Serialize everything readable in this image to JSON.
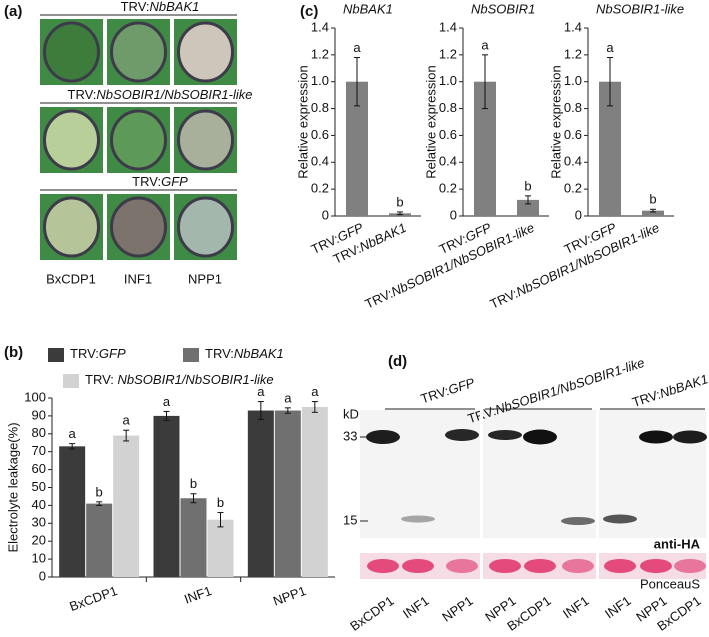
{
  "panel_labels": {
    "a": "(a)",
    "b": "(b)",
    "c": "(c)",
    "d": "(d)"
  },
  "panel_a": {
    "groups": [
      "TRV:NbBAK1",
      "TRV:NbSOBIR1/NbSOBIR1-like",
      "TRV:GFP"
    ],
    "columns": [
      "BxCDP1",
      "INF1",
      "NPP1"
    ]
  },
  "panel_d": {
    "groups": [
      "TRV:GFP",
      "TRV:NbSOBIR1/NbSOBIR1-like",
      "TRV:NbBAK1"
    ],
    "unit": "kD",
    "markers": [
      "33",
      "15"
    ],
    "antibody": "anti-HA",
    "stain": "PonceauS",
    "lanes": [
      "BxCDP1",
      "INF1",
      "NPP1",
      "NPP1",
      "BxCDP1",
      "INF1",
      "INF1",
      "NPP1",
      "BxCDP1"
    ]
  },
  "chart_data": [
    {
      "type": "bar",
      "title": "NbBAK1",
      "ylabel": "Relative expression",
      "categories": [
        "TRV:GFP",
        "TRV:NbBAK1"
      ],
      "values": [
        1.0,
        0.02
      ],
      "errors": [
        0.18,
        0.01
      ],
      "annotations": [
        "a",
        "b"
      ],
      "color": "#808080",
      "ylim": [
        0,
        1.4
      ],
      "yticks": [
        0,
        0.2,
        0.4,
        0.6,
        0.8,
        {
          "value": 1,
          "label": "1.0"
        },
        1.2,
        1.4
      ]
    },
    {
      "type": "bar",
      "title": "NbSOBIR1",
      "ylabel": "Relative expression",
      "categories": [
        "TRV:GFP",
        "TRV:NbSOBIR1/NbSOBIR1-like"
      ],
      "values": [
        1.0,
        0.12
      ],
      "errors": [
        0.2,
        0.03
      ],
      "annotations": [
        "a",
        "b"
      ],
      "color": "#808080",
      "ylim": [
        0,
        1.4
      ],
      "yticks": [
        0,
        0.2,
        0.4,
        0.6,
        0.8,
        {
          "value": 1,
          "label": "1.0"
        },
        1.2,
        1.4
      ]
    },
    {
      "type": "bar",
      "title": "NbSOBIR1-like",
      "ylabel": "Relative expression",
      "categories": [
        "TRV:GFP",
        "TRV:NbSOBIR1/NbSOBIR1-like"
      ],
      "values": [
        1.0,
        0.04
      ],
      "errors": [
        0.18,
        0.01
      ],
      "annotations": [
        "a",
        "b"
      ],
      "color": "#808080",
      "ylim": [
        0,
        1.4
      ],
      "yticks": [
        0,
        0.2,
        0.4,
        0.6,
        0.8,
        {
          "value": 1,
          "label": "1.0"
        },
        1.2,
        1.4
      ]
    },
    {
      "type": "grouped_bar",
      "ylabel": "Electrolyte leakage(%)",
      "categories": [
        "BxCDP1",
        "INF1",
        "NPP1"
      ],
      "series": [
        {
          "name": "TRV:GFP",
          "color": "#3b3b3b",
          "values": [
            73,
            90,
            93
          ],
          "errors": [
            1.5,
            2.5,
            5
          ],
          "annotations": [
            "a",
            "a",
            "a"
          ]
        },
        {
          "name": "TRV:NbBAK1",
          "color": "#707070",
          "values": [
            41,
            44,
            93
          ],
          "errors": [
            1,
            2.5,
            1.5
          ],
          "annotations": [
            "b",
            "b",
            "a"
          ]
        },
        {
          "name": "TRV: NbSOBIR1/NbSOBIR1-like",
          "color": "#d2d2d2",
          "values": [
            79,
            32,
            95
          ],
          "errors": [
            3,
            4,
            3
          ],
          "annotations": [
            "a",
            "b",
            "a"
          ]
        }
      ],
      "ylim": [
        0,
        100
      ],
      "yticks": [
        0,
        10,
        20,
        30,
        40,
        50,
        60,
        70,
        80,
        90,
        100
      ]
    }
  ]
}
